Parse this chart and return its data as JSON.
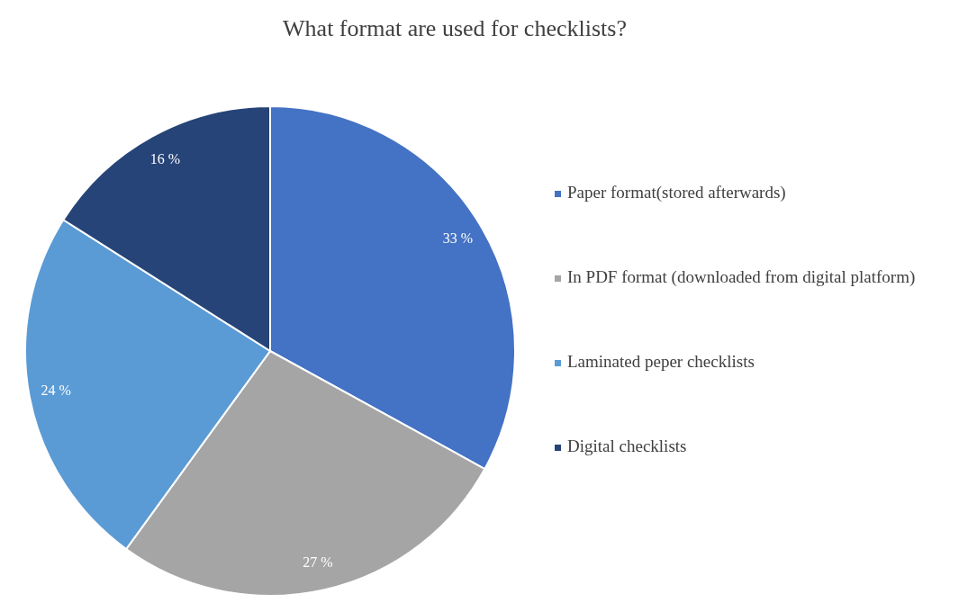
{
  "chart_data": {
    "type": "pie",
    "title": "What format are used for checklists?",
    "categories": [
      "Paper format(stored afterwards)",
      "In PDF format (downloaded from digital platform)",
      "Laminated peper checklists",
      "Digital checklists"
    ],
    "values": [
      33,
      27,
      24,
      16
    ],
    "colors": [
      "#4472c4",
      "#a5a5a5",
      "#5b9bd5",
      "#264478"
    ],
    "value_labels": [
      "33 %",
      "27 %",
      "24 %",
      "16 %"
    ],
    "legend": "right"
  }
}
